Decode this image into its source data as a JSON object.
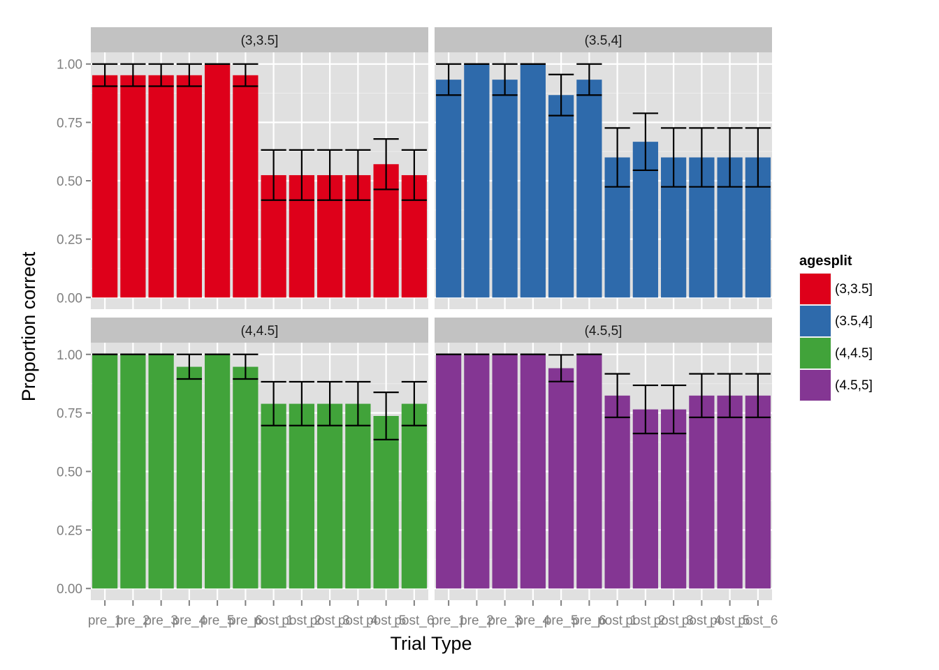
{
  "chart_data": {
    "type": "bar",
    "facet_by": "agesplit",
    "xlabel": "Trial Type",
    "ylabel": "Proportion correct",
    "ylim": [
      0,
      1.05
    ],
    "yticks": [
      "0.00",
      "0.25",
      "0.50",
      "0.75",
      "1.00"
    ],
    "ytick_values": [
      0,
      0.25,
      0.5,
      0.75,
      1.0
    ],
    "categories": [
      "pre_1",
      "pre_2",
      "pre_3",
      "pre_4",
      "pre_5",
      "pre_6",
      "post_1",
      "post_2",
      "post_3",
      "post_4",
      "post_5",
      "post_6"
    ],
    "legend": {
      "title": "agesplit",
      "position": "right"
    },
    "grid": true,
    "panels": [
      {
        "name": "(3,3.5]",
        "color": "#de001a",
        "values": [
          0.952,
          0.952,
          0.952,
          0.952,
          1.0,
          0.952,
          0.524,
          0.524,
          0.524,
          0.524,
          0.571,
          0.524
        ],
        "err_low": [
          0.905,
          0.905,
          0.905,
          0.905,
          1.0,
          0.905,
          0.417,
          0.417,
          0.417,
          0.417,
          0.463,
          0.417
        ],
        "err_high": [
          1.0,
          1.0,
          1.0,
          1.0,
          1.0,
          1.0,
          0.632,
          0.632,
          0.632,
          0.632,
          0.679,
          0.632
        ]
      },
      {
        "name": "(3.5,4]",
        "color": "#2e6aab",
        "values": [
          0.933,
          1.0,
          0.933,
          1.0,
          0.867,
          0.933,
          0.6,
          0.667,
          0.6,
          0.6,
          0.6,
          0.6
        ],
        "err_low": [
          0.867,
          1.0,
          0.867,
          1.0,
          0.779,
          0.867,
          0.474,
          0.545,
          0.474,
          0.474,
          0.474,
          0.474
        ],
        "err_high": [
          1.0,
          1.0,
          1.0,
          1.0,
          0.955,
          1.0,
          0.726,
          0.789,
          0.726,
          0.726,
          0.726,
          0.726
        ]
      },
      {
        "name": "(4,4.5]",
        "color": "#41a33a",
        "values": [
          1.0,
          1.0,
          1.0,
          0.947,
          1.0,
          0.947,
          0.789,
          0.789,
          0.789,
          0.789,
          0.737,
          0.789
        ],
        "err_low": [
          1.0,
          1.0,
          1.0,
          0.895,
          1.0,
          0.895,
          0.696,
          0.696,
          0.696,
          0.696,
          0.636,
          0.696
        ],
        "err_high": [
          1.0,
          1.0,
          1.0,
          1.0,
          1.0,
          1.0,
          0.883,
          0.883,
          0.883,
          0.883,
          0.838,
          0.883
        ]
      },
      {
        "name": "(4.5,5]",
        "color": "#843693",
        "values": [
          1.0,
          1.0,
          1.0,
          1.0,
          0.941,
          1.0,
          0.824,
          0.765,
          0.765,
          0.824,
          0.824,
          0.824
        ],
        "err_low": [
          1.0,
          1.0,
          1.0,
          1.0,
          0.884,
          1.0,
          0.731,
          0.662,
          0.662,
          0.731,
          0.731,
          0.731
        ],
        "err_high": [
          1.0,
          1.0,
          1.0,
          1.0,
          0.998,
          1.0,
          0.917,
          0.868,
          0.868,
          0.917,
          0.917,
          0.917
        ]
      }
    ]
  }
}
